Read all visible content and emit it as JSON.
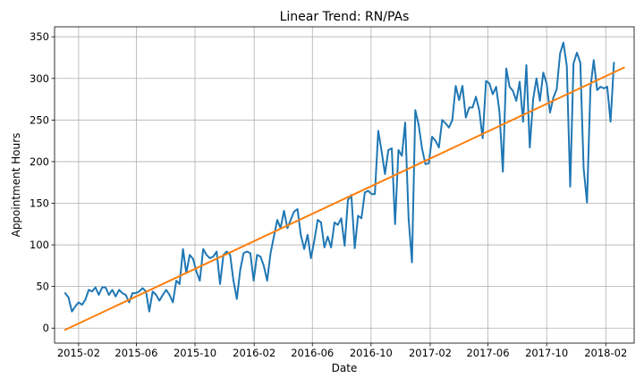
{
  "chart_data": {
    "type": "line",
    "title": "Linear Trend: RN/PAs",
    "xlabel": "Date",
    "ylabel": "Appointment Hours",
    "x_start": "2015-01-04",
    "x_frequency": "weekly",
    "xlim": [
      "2014-12-13",
      "2018-04-01"
    ],
    "ylim": [
      -18,
      362
    ],
    "x_ticks": [
      "2015-02",
      "2015-06",
      "2015-10",
      "2016-02",
      "2016-06",
      "2016-10",
      "2017-02",
      "2017-06",
      "2017-10",
      "2018-02"
    ],
    "y_ticks": [
      0,
      50,
      100,
      150,
      200,
      250,
      300,
      350
    ],
    "grid": true,
    "series": [
      {
        "color": "#1f77b4",
        "values": [
          42,
          37,
          20,
          26,
          31,
          28,
          34,
          46,
          44,
          49,
          40,
          49,
          49,
          40,
          46,
          38,
          46,
          42,
          40,
          31,
          42,
          42,
          44,
          48,
          44,
          20,
          44,
          40,
          33,
          40,
          46,
          40,
          31,
          57,
          53,
          95,
          66,
          88,
          83,
          68,
          57,
          95,
          88,
          84,
          86,
          92,
          53,
          88,
          92,
          88,
          57,
          35,
          70,
          90,
          92,
          90,
          57,
          88,
          86,
          75,
          57,
          90,
          110,
          130,
          120,
          141,
          120,
          130,
          140,
          143,
          112,
          95,
          112,
          84,
          105,
          130,
          127,
          97,
          110,
          97,
          127,
          124,
          132,
          99,
          154,
          160,
          96,
          135,
          132,
          163,
          165,
          161,
          161,
          237,
          212,
          185,
          214,
          216,
          125,
          214,
          207,
          247,
          132,
          79,
          262,
          244,
          216,
          197,
          198,
          230,
          225,
          217,
          250,
          246,
          241,
          250,
          291,
          274,
          291,
          253,
          265,
          265,
          278,
          262,
          228,
          297,
          294,
          281,
          290,
          260,
          188,
          312,
          290,
          285,
          273,
          296,
          248,
          316,
          217,
          275,
          300,
          273,
          307,
          294,
          259,
          277,
          287,
          330,
          343,
          315,
          170,
          318,
          331,
          319,
          192,
          151,
          288,
          322,
          286,
          290,
          288,
          290,
          248,
          319
        ]
      },
      {
        "color": "#ff7f0e",
        "x": [
          "2015-01-04",
          "2018-03-11"
        ],
        "values": [
          -2,
          313
        ]
      }
    ]
  }
}
